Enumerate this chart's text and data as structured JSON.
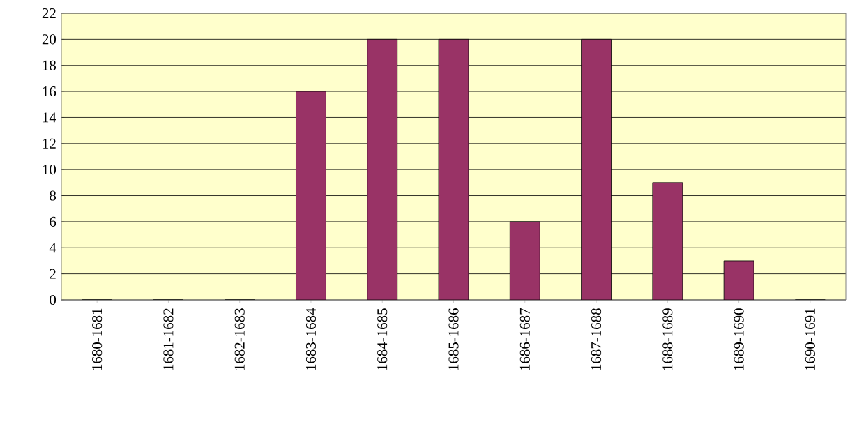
{
  "chart_data": {
    "type": "bar",
    "categories": [
      "1680-1681",
      "1681-1682",
      "1682-1683",
      "1683-1684",
      "1684-1685",
      "1685-1686",
      "1686-1687",
      "1687-1688",
      "1688-1689",
      "1689-1690",
      "1690-1691"
    ],
    "values": [
      0,
      0,
      0,
      16,
      20,
      20,
      6,
      20,
      9,
      3,
      0
    ],
    "color": "#993366",
    "ylim": [
      0,
      22
    ],
    "yticks": [
      0,
      2,
      4,
      6,
      8,
      10,
      12,
      14,
      16,
      18,
      20,
      22
    ],
    "grid": "y"
  }
}
